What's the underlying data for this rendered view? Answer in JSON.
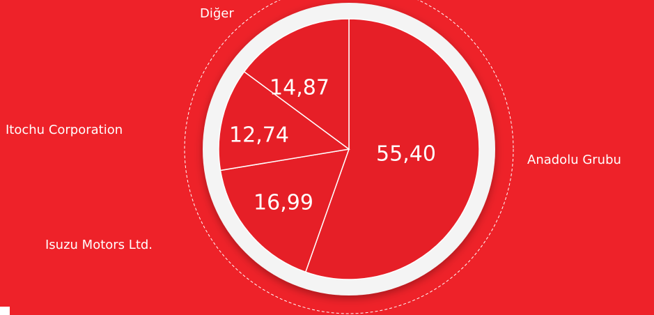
{
  "chart_data": {
    "type": "pie",
    "categories": [
      "Anadolu Grubu",
      "Isuzu Motors Ltd.",
      "Itochu Corporation",
      "Diğer"
    ],
    "values": [
      55.4,
      16.99,
      12.74,
      14.87
    ],
    "value_labels": [
      "55,40",
      "16,99",
      "12,74",
      "14,87"
    ],
    "color": "#e61f27"
  }
}
